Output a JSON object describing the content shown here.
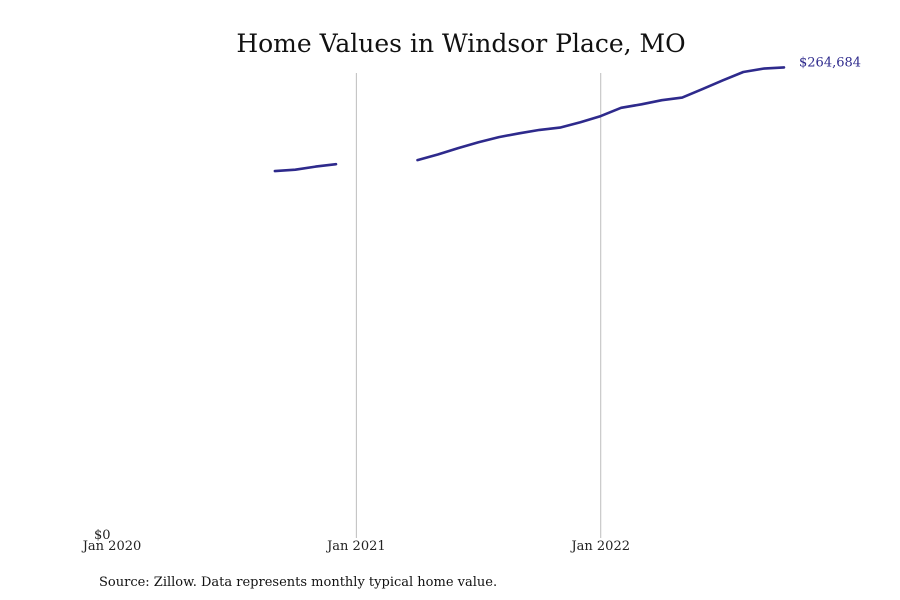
{
  "chart_data": {
    "type": "line",
    "title": "Home Values in Windsor Place, MO",
    "xlabel": "",
    "ylabel": "",
    "x_ticks": [
      "Jan 2020",
      "Jan 2021",
      "Jan 2022"
    ],
    "y_ticks": [
      "$0"
    ],
    "ylim": [
      0,
      270000
    ],
    "grid": "vertical",
    "end_label": "$264,684",
    "series": [
      {
        "color": "#2e2a8c",
        "segments": [
          [
            {
              "x": "2020-09",
              "y": 206000
            },
            {
              "x": "2020-10",
              "y": 206800
            },
            {
              "x": "2020-11",
              "y": 208500
            },
            {
              "x": "2020-12",
              "y": 209900
            }
          ],
          [
            {
              "x": "2021-04",
              "y": 212200
            },
            {
              "x": "2021-05",
              "y": 215400
            },
            {
              "x": "2021-06",
              "y": 219000
            },
            {
              "x": "2021-07",
              "y": 222300
            },
            {
              "x": "2021-08",
              "y": 225200
            },
            {
              "x": "2021-09",
              "y": 227400
            },
            {
              "x": "2021-10",
              "y": 229300
            },
            {
              "x": "2021-11",
              "y": 230600
            },
            {
              "x": "2021-12",
              "y": 233600
            },
            {
              "x": "2022-01",
              "y": 237100
            },
            {
              "x": "2022-02",
              "y": 241800
            },
            {
              "x": "2022-03",
              "y": 243800
            },
            {
              "x": "2022-04",
              "y": 246100
            },
            {
              "x": "2022-05",
              "y": 247600
            },
            {
              "x": "2022-06",
              "y": 252400
            },
            {
              "x": "2022-07",
              "y": 257400
            },
            {
              "x": "2022-08",
              "y": 262100
            },
            {
              "x": "2022-09",
              "y": 264000
            },
            {
              "x": "2022-10",
              "y": 264684
            }
          ]
        ]
      }
    ]
  },
  "footer": {
    "source": "Source: Zillow. Data represents monthly typical home value."
  }
}
